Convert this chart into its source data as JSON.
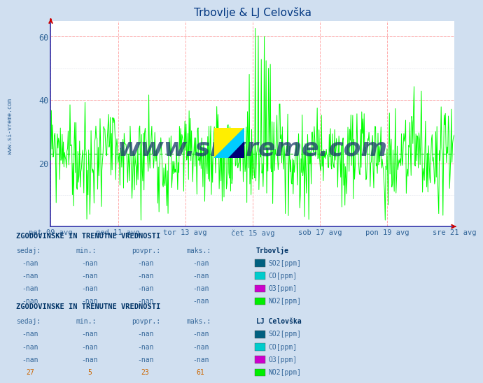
{
  "title": "Trbovlje & LJ Celovška",
  "title_color": "#003580",
  "background_color": "#d0dff0",
  "plot_bg_color": "#ffffff",
  "grid_color_major": "#ffaaaa",
  "line_color": "#00ff00",
  "avg_line_color": "#00bb00",
  "avg_line_value": 23,
  "ylim": [
    0,
    65
  ],
  "yticks": [
    20,
    40,
    60
  ],
  "xlabel_color": "#336699",
  "xtick_labels": [
    "pet 09 avg",
    "ned 11 avg",
    "tor 13 avg",
    "čet 15 avg",
    "sob 17 avg",
    "pon 19 avg",
    "sre 21 avg"
  ],
  "n_points": 672,
  "watermark_text": "www.si-vreme.com",
  "watermark_color": "#1a3a6a",
  "left_label": "www.si-vreme.com",
  "section1_title": "ZGODOVINSKE IN TRENUTNE VREDNOSTI",
  "section1_station": "Trbovlje",
  "section2_station": "LJ Celovška",
  "col_headers": [
    "sedaj:",
    "min.:",
    "povpr.:",
    "maks.:"
  ],
  "trbovlje_rows": [
    [
      "-nan",
      "-nan",
      "-nan",
      "-nan",
      "SO2[ppm]",
      "#006080"
    ],
    [
      "-nan",
      "-nan",
      "-nan",
      "-nan",
      "CO[ppm]",
      "#00cccc"
    ],
    [
      "-nan",
      "-nan",
      "-nan",
      "-nan",
      "O3[ppm]",
      "#cc00cc"
    ],
    [
      "-nan",
      "-nan",
      "-nan",
      "-nan",
      "NO2[ppm]",
      "#00ee00"
    ]
  ],
  "lj_rows": [
    [
      "-nan",
      "-nan",
      "-nan",
      "-nan",
      "SO2[ppm]",
      "#006080"
    ],
    [
      "-nan",
      "-nan",
      "-nan",
      "-nan",
      "CO[ppm]",
      "#00cccc"
    ],
    [
      "-nan",
      "-nan",
      "-nan",
      "-nan",
      "O3[ppm]",
      "#cc00cc"
    ],
    [
      "27",
      "5",
      "23",
      "61",
      "NO2[ppm]",
      "#00ee00"
    ]
  ],
  "text_color_header": "#003366",
  "text_color_label": "#336699",
  "text_color_data": "#cc6600",
  "font_mono": "monospace"
}
